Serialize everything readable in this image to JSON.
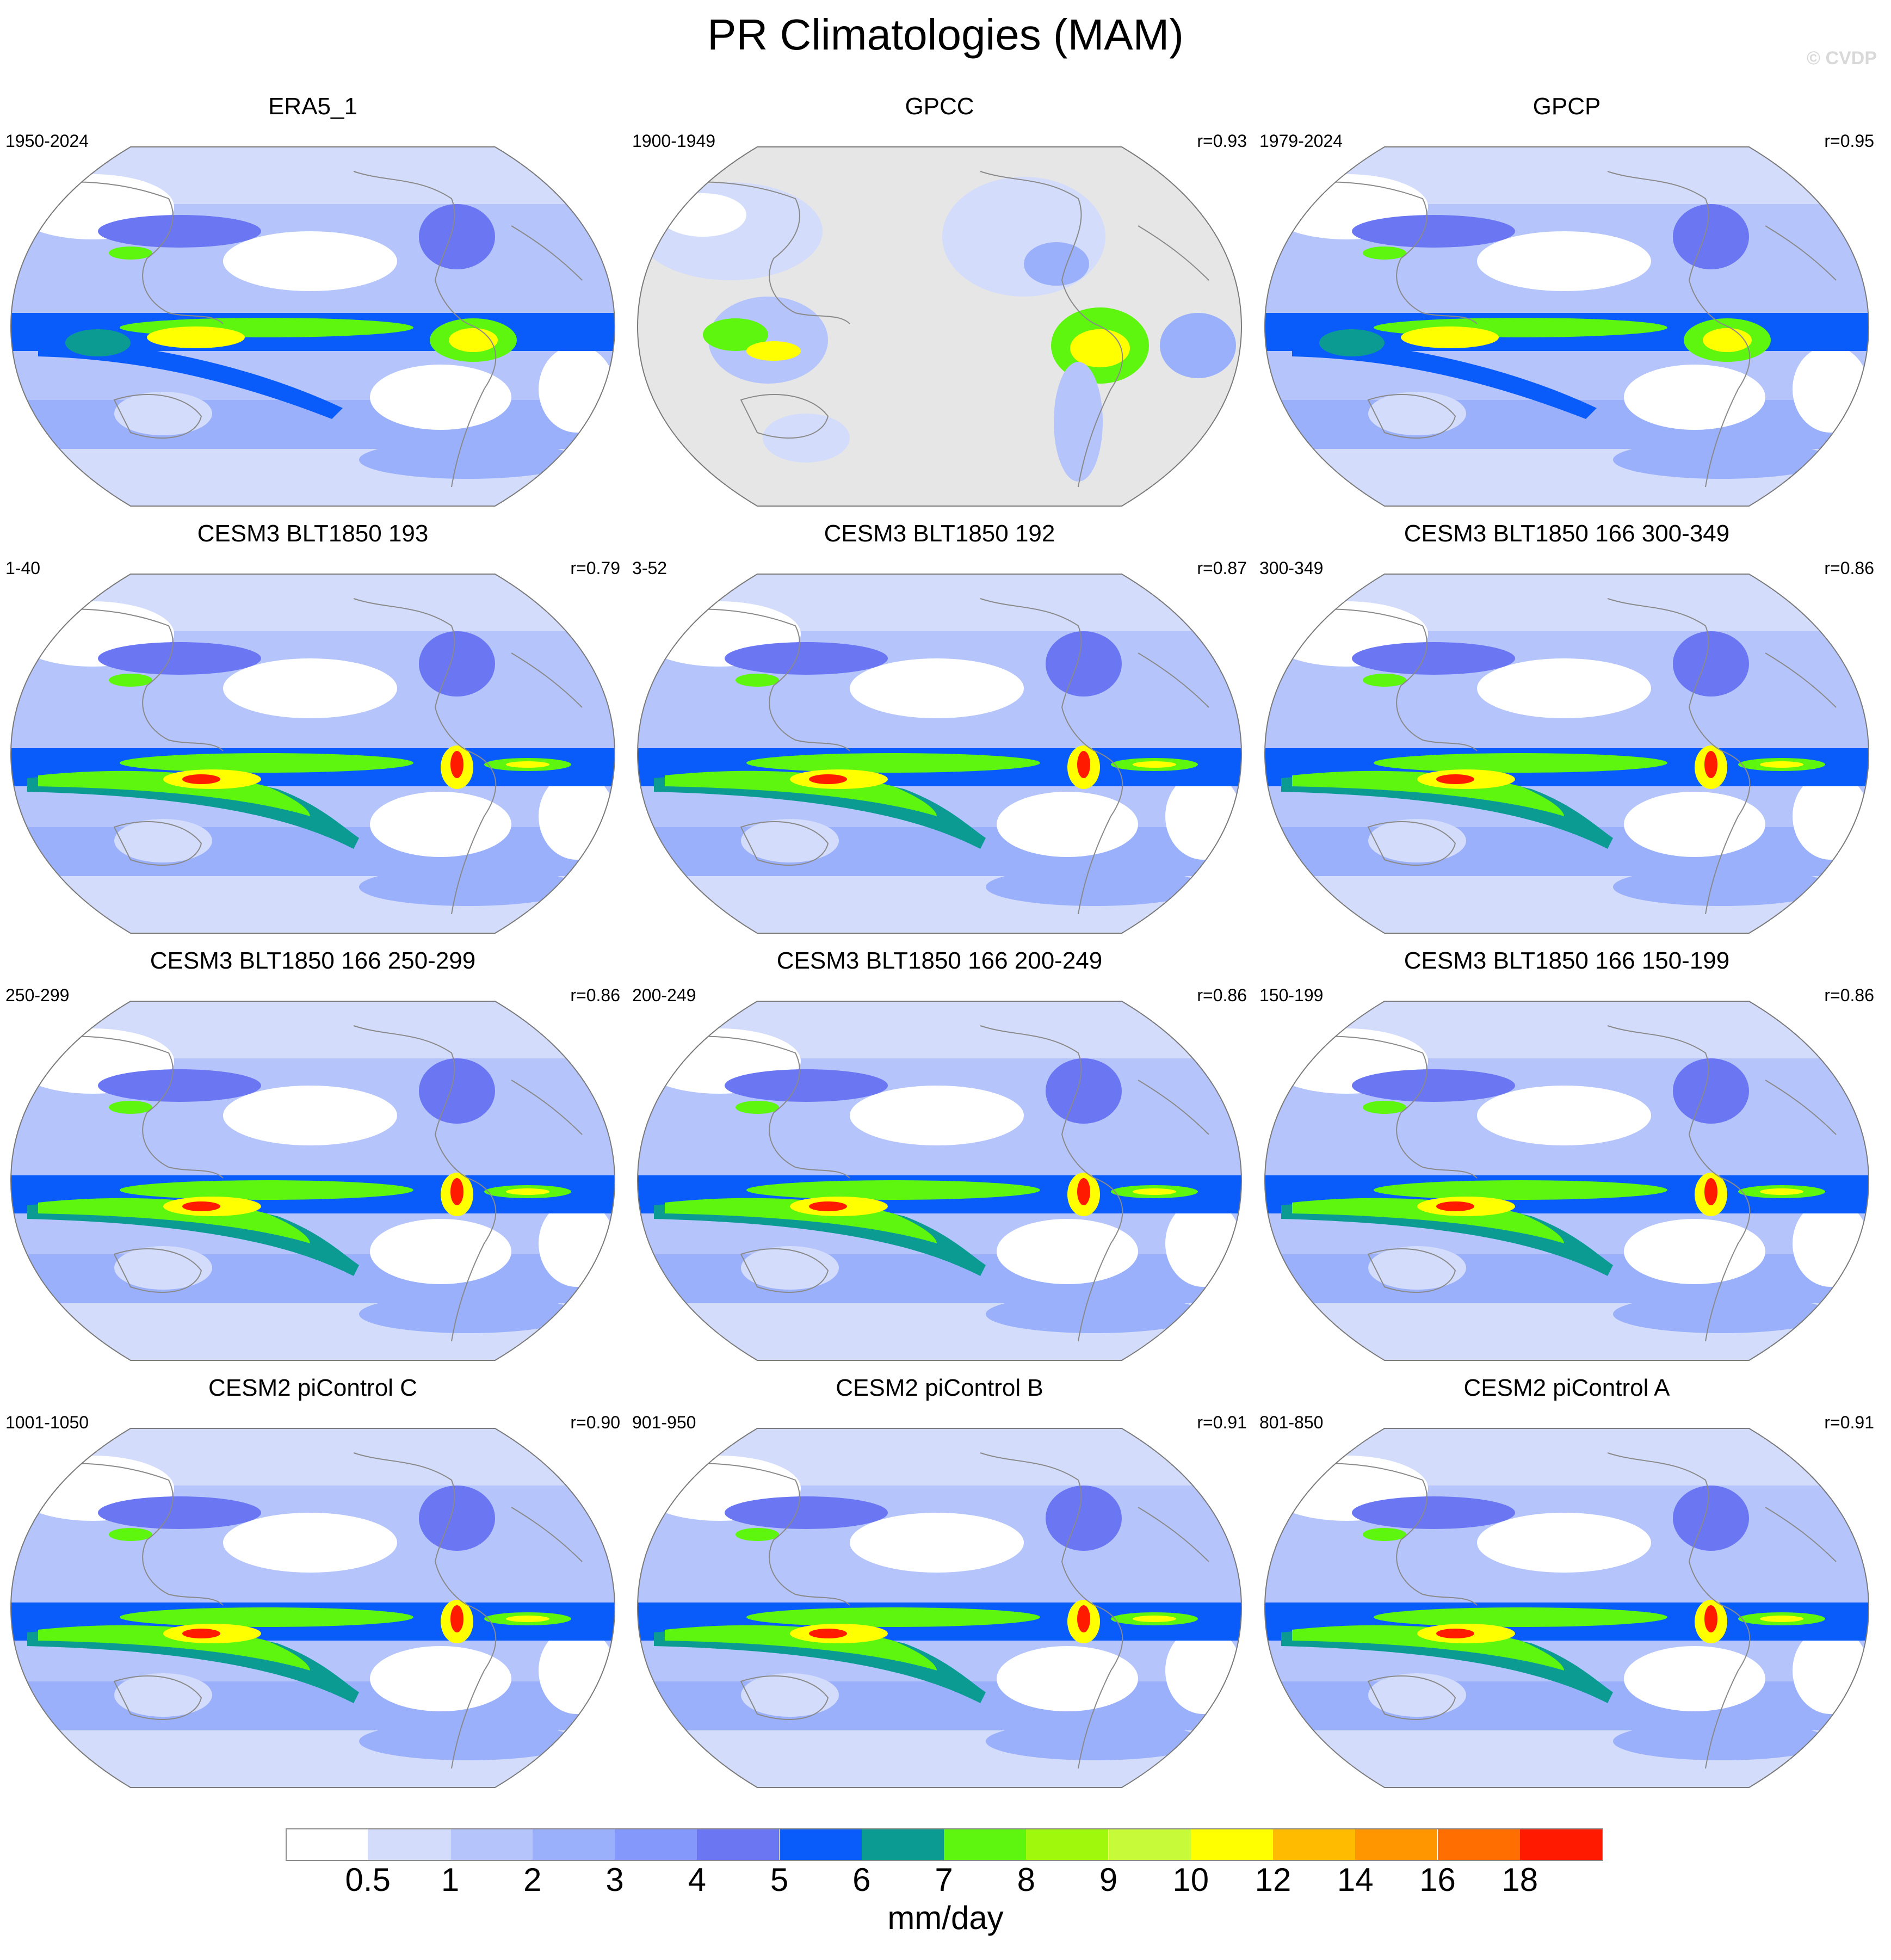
{
  "figure": {
    "title": "PR Climatologies (MAM)",
    "watermark": "© CVDP"
  },
  "panels": [
    {
      "title": "ERA5_1",
      "period": "1950-2024",
      "corr": "",
      "style": "obs_era"
    },
    {
      "title": "GPCC",
      "period": "1900-1949",
      "corr": "r=0.93",
      "style": "obs_gpcc"
    },
    {
      "title": "GPCP",
      "period": "1979-2024",
      "corr": "r=0.95",
      "style": "obs_gpcp"
    },
    {
      "title": "CESM3 BLT1850 193",
      "period": "1-40",
      "corr": "r=0.79",
      "style": "model"
    },
    {
      "title": "CESM3 BLT1850 192",
      "period": "3-52",
      "corr": "r=0.87",
      "style": "model"
    },
    {
      "title": "CESM3 BLT1850 166 300-349",
      "period": "300-349",
      "corr": "r=0.86",
      "style": "model"
    },
    {
      "title": "CESM3 BLT1850 166 250-299",
      "period": "250-299",
      "corr": "r=0.86",
      "style": "model"
    },
    {
      "title": "CESM3 BLT1850 166 200-249",
      "period": "200-249",
      "corr": "r=0.86",
      "style": "model"
    },
    {
      "title": "CESM3 BLT1850 166 150-199",
      "period": "150-199",
      "corr": "r=0.86",
      "style": "model"
    },
    {
      "title": "CESM2 piControl C",
      "period": "1001-1050",
      "corr": "r=0.90",
      "style": "model2"
    },
    {
      "title": "CESM2 piControl B",
      "period": "901-950",
      "corr": "r=0.91",
      "style": "model2"
    },
    {
      "title": "CESM2 piControl A",
      "period": "801-850",
      "corr": "r=0.91",
      "style": "model2"
    }
  ],
  "colorbar": {
    "units": "mm/day",
    "labels": [
      "0.5",
      "1",
      "2",
      "3",
      "4",
      "5",
      "6",
      "7",
      "8",
      "9",
      "10",
      "12",
      "14",
      "16",
      "18"
    ],
    "colors": [
      "#ffffff",
      "#d3dcfb",
      "#b5c4fb",
      "#9ab0fb",
      "#8398fa",
      "#6b76f3",
      "#0a5cfa",
      "#0b9b93",
      "#5ef60f",
      "#a0f80c",
      "#c7fa38",
      "#ffff00",
      "#ffbb00",
      "#ff9600",
      "#ff6e00",
      "#ff1a00"
    ]
  },
  "map_colors": {
    "ocean_low": "#d3dcfb",
    "ocean_mid": "#b5c4fb",
    "ocean_high": "#9ab0fb",
    "storm_track": "#6b76f3",
    "itcz_blue": "#0a5cfa",
    "itcz_teal": "#0b9b93",
    "itcz_green": "#5ef60f",
    "itcz_yellow": "#ffff00",
    "itcz_red": "#ff1a00",
    "dry": "#ffffff",
    "missing": "#e6e6e6",
    "coast": "#8a8a8a"
  }
}
